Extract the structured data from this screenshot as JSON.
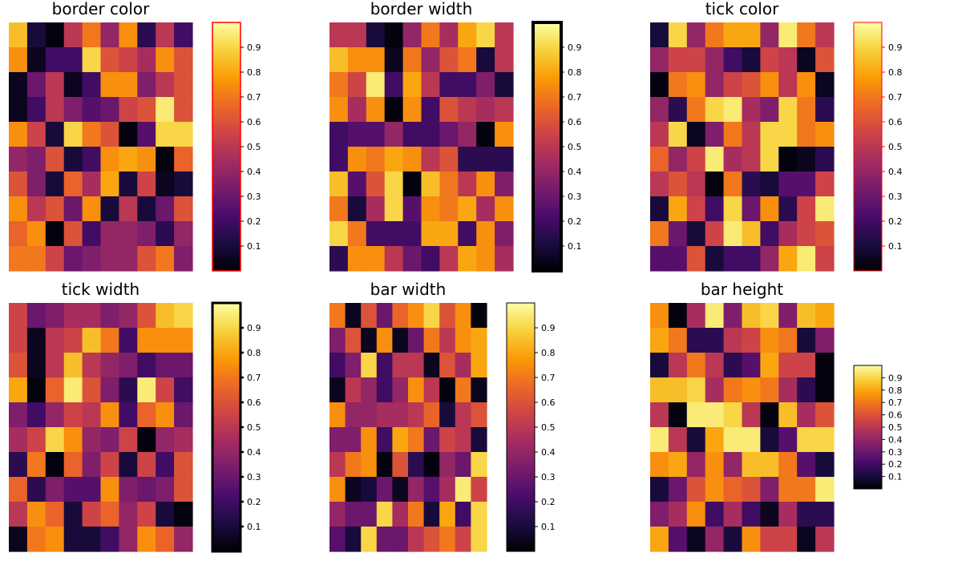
{
  "figure": {
    "colormap_name": "inferno",
    "colormap_stops": [
      "#000004",
      "#1b0c41",
      "#4a0c6b",
      "#781c6d",
      "#a52c60",
      "#cf4446",
      "#ed6925",
      "#fb9b06",
      "#f7d13d",
      "#fcffa4"
    ]
  },
  "chart_data": [
    {
      "type": "heatmap",
      "title": "border color",
      "xlabel": "",
      "ylabel": "",
      "colorbar": {
        "range": [
          0,
          1
        ],
        "ticks": [
          0.1,
          0.2,
          0.3,
          0.4,
          0.5,
          0.6,
          0.7,
          0.8,
          0.9
        ],
        "tick_labels": [
          "0.1",
          "0.2",
          "0.3",
          "0.4",
          "0.5",
          "0.6",
          "0.7",
          "0.8",
          "0.9"
        ],
        "border_color": "#ff0000",
        "tick_color": "#000000"
      },
      "values": [
        [
          0.85,
          0.1,
          0.02,
          0.5,
          0.7,
          0.4,
          0.75,
          0.15,
          0.5,
          0.2
        ],
        [
          0.75,
          0.05,
          0.2,
          0.2,
          0.9,
          0.6,
          0.55,
          0.45,
          0.75,
          0.6
        ],
        [
          0.05,
          0.3,
          0.5,
          0.05,
          0.2,
          0.75,
          0.75,
          0.35,
          0.5,
          0.6
        ],
        [
          0.05,
          0.2,
          0.5,
          0.35,
          0.25,
          0.3,
          0.55,
          0.6,
          0.95,
          0.6
        ],
        [
          0.75,
          0.55,
          0.1,
          0.9,
          0.7,
          0.6,
          0.02,
          0.25,
          0.9,
          0.9
        ],
        [
          0.4,
          0.35,
          0.6,
          0.1,
          0.2,
          0.75,
          0.8,
          0.75,
          0.02,
          0.65
        ],
        [
          0.6,
          0.35,
          0.1,
          0.65,
          0.45,
          0.8,
          0.1,
          0.55,
          0.05,
          0.1
        ],
        [
          0.75,
          0.5,
          0.6,
          0.3,
          0.75,
          0.1,
          0.5,
          0.1,
          0.3,
          0.6
        ],
        [
          0.65,
          0.75,
          0.02,
          0.6,
          0.2,
          0.4,
          0.4,
          0.35,
          0.15,
          0.4
        ],
        [
          0.7,
          0.7,
          0.55,
          0.3,
          0.35,
          0.4,
          0.4,
          0.6,
          0.7,
          0.35
        ]
      ]
    },
    {
      "type": "heatmap",
      "title": "border width",
      "xlabel": "",
      "ylabel": "",
      "colorbar": {
        "range": [
          0,
          1
        ],
        "ticks": [
          0.1,
          0.2,
          0.3,
          0.4,
          0.5,
          0.6,
          0.7,
          0.8,
          0.9
        ],
        "tick_labels": [
          "0.1",
          "0.2",
          "0.3",
          "0.4",
          "0.5",
          "0.6",
          "0.7",
          "0.8",
          "0.9"
        ],
        "border_color": "#000000",
        "tick_color": "#000000"
      },
      "values": [
        [
          0.5,
          0.5,
          0.1,
          0.02,
          0.4,
          0.7,
          0.45,
          0.8,
          0.9,
          0.5
        ],
        [
          0.85,
          0.75,
          0.75,
          0.05,
          0.7,
          0.4,
          0.6,
          0.7,
          0.1,
          0.5
        ],
        [
          0.7,
          0.55,
          0.95,
          0.2,
          0.8,
          0.5,
          0.2,
          0.2,
          0.35,
          0.1
        ],
        [
          0.75,
          0.45,
          0.75,
          0.02,
          0.75,
          0.2,
          0.6,
          0.5,
          0.45,
          0.5
        ],
        [
          0.2,
          0.25,
          0.25,
          0.4,
          0.2,
          0.2,
          0.3,
          0.4,
          0.02,
          0.75
        ],
        [
          0.2,
          0.75,
          0.7,
          0.8,
          0.75,
          0.5,
          0.6,
          0.15,
          0.15,
          0.15
        ],
        [
          0.85,
          0.25,
          0.6,
          0.9,
          0.02,
          0.85,
          0.7,
          0.5,
          0.75,
          0.35
        ],
        [
          0.7,
          0.1,
          0.45,
          0.9,
          0.25,
          0.75,
          0.7,
          0.8,
          0.45,
          0.75
        ],
        [
          0.9,
          0.7,
          0.2,
          0.2,
          0.2,
          0.8,
          0.8,
          0.2,
          0.75,
          0.35
        ],
        [
          0.15,
          0.75,
          0.75,
          0.5,
          0.3,
          0.2,
          0.5,
          0.8,
          0.75,
          0.45
        ]
      ]
    },
    {
      "type": "heatmap",
      "title": "tick color",
      "xlabel": "",
      "ylabel": "",
      "colorbar": {
        "range": [
          0,
          1
        ],
        "ticks": [
          0.1,
          0.2,
          0.3,
          0.4,
          0.5,
          0.6,
          0.7,
          0.8,
          0.9
        ],
        "tick_labels": [
          "0.1",
          "0.2",
          "0.3",
          "0.4",
          "0.5",
          "0.6",
          "0.7",
          "0.8",
          "0.9"
        ],
        "border_color": "#ff0000",
        "tick_color": "#ff0000"
      },
      "values": [
        [
          0.1,
          0.9,
          0.4,
          0.7,
          0.8,
          0.8,
          0.4,
          0.95,
          0.7,
          0.5
        ],
        [
          0.4,
          0.55,
          0.55,
          0.4,
          0.2,
          0.1,
          0.55,
          0.5,
          0.05,
          0.6
        ],
        [
          0.02,
          0.7,
          0.75,
          0.4,
          0.55,
          0.6,
          0.75,
          0.5,
          0.75,
          0.05
        ],
        [
          0.4,
          0.15,
          0.7,
          0.9,
          0.95,
          0.45,
          0.35,
          0.9,
          0.7,
          0.15
        ],
        [
          0.5,
          0.9,
          0.05,
          0.35,
          0.7,
          0.5,
          0.9,
          0.9,
          0.7,
          0.75
        ],
        [
          0.65,
          0.4,
          0.55,
          0.95,
          0.45,
          0.5,
          0.9,
          0.02,
          0.05,
          0.15
        ],
        [
          0.5,
          0.6,
          0.5,
          0.02,
          0.7,
          0.15,
          0.1,
          0.25,
          0.25,
          0.55
        ],
        [
          0.1,
          0.8,
          0.55,
          0.2,
          0.9,
          0.3,
          0.75,
          0.15,
          0.55,
          0.95
        ],
        [
          0.7,
          0.3,
          0.1,
          0.55,
          0.95,
          0.85,
          0.2,
          0.45,
          0.55,
          0.6
        ],
        [
          0.25,
          0.25,
          0.6,
          0.1,
          0.2,
          0.2,
          0.4,
          0.8,
          0.95,
          0.55
        ]
      ]
    },
    {
      "type": "heatmap",
      "title": "tick width",
      "xlabel": "",
      "ylabel": "",
      "colorbar": {
        "range": [
          0,
          1
        ],
        "ticks": [
          0.1,
          0.2,
          0.3,
          0.4,
          0.5,
          0.6,
          0.7,
          0.8,
          0.9
        ],
        "tick_labels": [
          "0.1",
          "0.2",
          "0.3",
          "0.4",
          "0.5",
          "0.6",
          "0.7",
          "0.8",
          "0.9"
        ],
        "border_color": "#000000",
        "tick_color": "#000000"
      },
      "values": [
        [
          0.55,
          0.3,
          0.35,
          0.45,
          0.45,
          0.35,
          0.4,
          0.6,
          0.85,
          0.9
        ],
        [
          0.55,
          0.05,
          0.5,
          0.55,
          0.85,
          0.7,
          0.2,
          0.75,
          0.75,
          0.75
        ],
        [
          0.6,
          0.05,
          0.5,
          0.85,
          0.5,
          0.4,
          0.35,
          0.2,
          0.3,
          0.3
        ],
        [
          0.8,
          0.02,
          0.65,
          0.95,
          0.6,
          0.35,
          0.15,
          0.95,
          0.55,
          0.2
        ],
        [
          0.35,
          0.2,
          0.4,
          0.55,
          0.5,
          0.75,
          0.2,
          0.65,
          0.75,
          0.3
        ],
        [
          0.45,
          0.55,
          0.9,
          0.75,
          0.4,
          0.35,
          0.55,
          0.02,
          0.4,
          0.45
        ],
        [
          0.15,
          0.7,
          0.02,
          0.65,
          0.35,
          0.55,
          0.1,
          0.55,
          0.2,
          0.6
        ],
        [
          0.65,
          0.15,
          0.35,
          0.25,
          0.25,
          0.75,
          0.35,
          0.3,
          0.35,
          0.6
        ],
        [
          0.5,
          0.75,
          0.65,
          0.1,
          0.55,
          0.65,
          0.4,
          0.55,
          0.1,
          0.02
        ],
        [
          0.05,
          0.7,
          0.75,
          0.1,
          0.1,
          0.2,
          0.4,
          0.75,
          0.65,
          0.4
        ]
      ]
    },
    {
      "type": "heatmap",
      "title": "bar width",
      "xlabel": "",
      "ylabel": "",
      "colorbar": {
        "range": [
          0,
          1
        ],
        "ticks": [
          0.1,
          0.2,
          0.3,
          0.4,
          0.5,
          0.6,
          0.7,
          0.8,
          0.9
        ],
        "tick_labels": [
          "0.1",
          "0.2",
          "0.3",
          "0.4",
          "0.5",
          "0.6",
          "0.7",
          "0.8",
          "0.9"
        ],
        "border_color": "#000000",
        "tick_color": "#000000"
      },
      "values": [
        [
          0.7,
          0.05,
          0.6,
          0.3,
          0.65,
          0.75,
          0.9,
          0.6,
          0.75,
          0.02
        ],
        [
          0.35,
          0.6,
          0.05,
          0.75,
          0.05,
          0.3,
          0.7,
          0.5,
          0.75,
          0.8
        ],
        [
          0.2,
          0.35,
          0.9,
          0.2,
          0.5,
          0.5,
          0.05,
          0.6,
          0.45,
          0.8
        ],
        [
          0.05,
          0.5,
          0.4,
          0.2,
          0.4,
          0.75,
          0.5,
          0.02,
          0.7,
          0.05
        ],
        [
          0.75,
          0.4,
          0.4,
          0.45,
          0.45,
          0.5,
          0.65,
          0.1,
          0.5,
          0.6
        ],
        [
          0.35,
          0.35,
          0.75,
          0.2,
          0.8,
          0.7,
          0.3,
          0.55,
          0.5,
          0.1
        ],
        [
          0.5,
          0.7,
          0.75,
          0.02,
          0.6,
          0.15,
          0.02,
          0.4,
          0.3,
          0.9
        ],
        [
          0.75,
          0.05,
          0.1,
          0.3,
          0.05,
          0.4,
          0.25,
          0.45,
          0.95,
          0.55
        ],
        [
          0.4,
          0.3,
          0.3,
          0.9,
          0.45,
          0.7,
          0.1,
          0.8,
          0.2,
          0.9
        ],
        [
          0.25,
          0.1,
          0.9,
          0.3,
          0.3,
          0.5,
          0.6,
          0.7,
          0.55,
          0.9
        ]
      ]
    },
    {
      "type": "heatmap",
      "title": "bar height",
      "xlabel": "",
      "ylabel": "",
      "colorbar": {
        "range": [
          0,
          1
        ],
        "ticks": [
          0.1,
          0.2,
          0.3,
          0.4,
          0.5,
          0.6,
          0.7,
          0.8,
          0.9
        ],
        "tick_labels": [
          "0.1",
          "0.2",
          "0.3",
          "0.4",
          "0.5",
          "0.6",
          "0.7",
          "0.8",
          "0.9"
        ],
        "border_color": "#000000",
        "tick_color": "#000000"
      },
      "values": [
        [
          0.75,
          0.02,
          0.45,
          0.95,
          0.35,
          0.85,
          0.9,
          0.35,
          0.85,
          0.8
        ],
        [
          0.8,
          0.7,
          0.15,
          0.15,
          0.5,
          0.55,
          0.75,
          0.7,
          0.1,
          0.35
        ],
        [
          0.1,
          0.5,
          0.7,
          0.5,
          0.15,
          0.25,
          0.8,
          0.55,
          0.55,
          0.02
        ],
        [
          0.85,
          0.85,
          0.9,
          0.45,
          0.7,
          0.75,
          0.7,
          0.45,
          0.15,
          0.02
        ],
        [
          0.5,
          0.02,
          0.95,
          0.95,
          0.9,
          0.5,
          0.02,
          0.85,
          0.45,
          0.6
        ],
        [
          0.95,
          0.5,
          0.1,
          0.8,
          0.95,
          0.95,
          0.1,
          0.25,
          0.9,
          0.9
        ],
        [
          0.75,
          0.8,
          0.4,
          0.75,
          0.4,
          0.85,
          0.85,
          0.7,
          0.25,
          0.1
        ],
        [
          0.1,
          0.3,
          0.6,
          0.75,
          0.65,
          0.6,
          0.35,
          0.7,
          0.7,
          0.95
        ],
        [
          0.35,
          0.45,
          0.75,
          0.2,
          0.45,
          0.2,
          0.05,
          0.45,
          0.15,
          0.15
        ],
        [
          0.8,
          0.25,
          0.05,
          0.4,
          0.1,
          0.75,
          0.55,
          0.55,
          0.05,
          0.5
        ]
      ]
    }
  ]
}
